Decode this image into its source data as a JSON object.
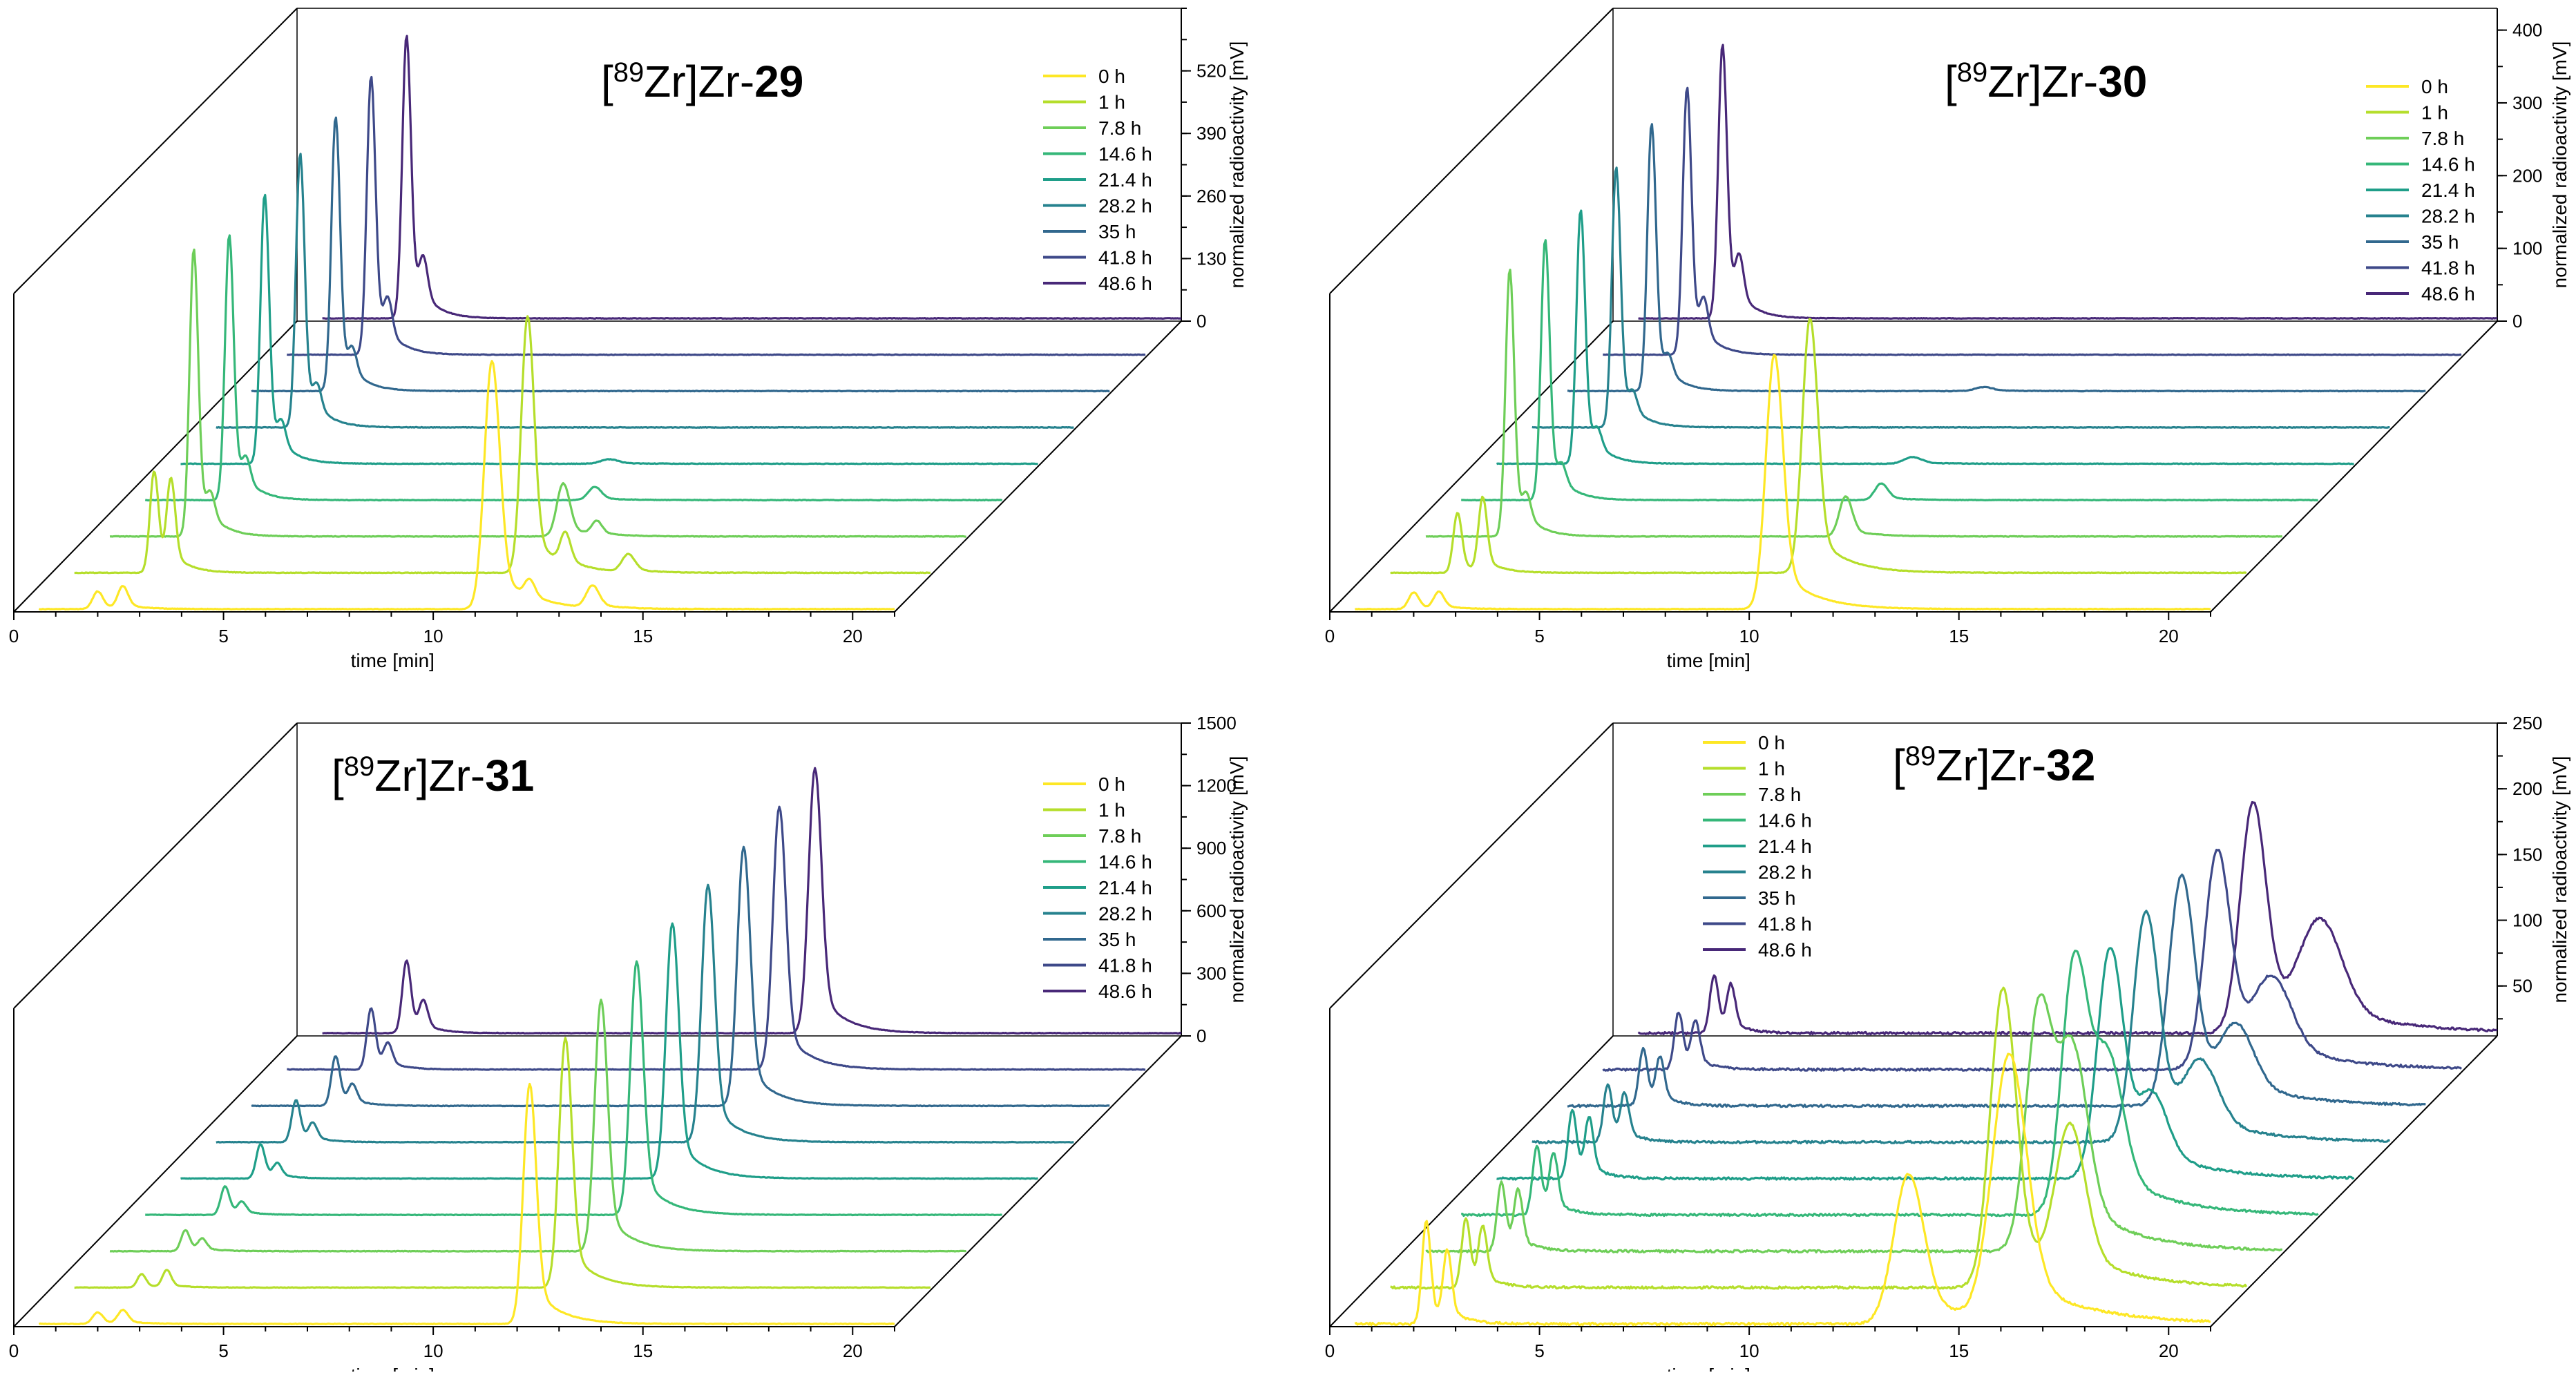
{
  "chart_data": [
    {
      "type": "line",
      "title": {
        "prefix": "[",
        "sup": "89",
        "mid": "Zr]Zr-",
        "bold": "29"
      },
      "xlabel": "time [min]",
      "ylabel": "normalized radioactivity [mV]",
      "xlim": [
        0,
        21
      ],
      "ylim": [
        0,
        650
      ],
      "xticks": [
        "0",
        "5",
        "10",
        "15",
        "20"
      ],
      "yticks": [
        "0",
        "130",
        "260",
        "390",
        "520"
      ],
      "legend": [
        "0 h",
        "1 h",
        "7.8 h",
        "14.6 h",
        "21.4 h",
        "28.2 h",
        "35 h",
        "41.8 h",
        "48.6 h"
      ],
      "legend_position": "top-right",
      "colors": [
        "#fde725",
        "#b5de2b",
        "#6ece58",
        "#35b779",
        "#1f9e89",
        "#26828e",
        "#31688e",
        "#3e4989",
        "#482878"
      ],
      "series": [
        {
          "name": "0 h",
          "peaks": [
            [
              2.0,
              40,
              0.12
            ],
            [
              2.6,
              50,
              0.12
            ],
            [
              11.4,
              560,
              0.18
            ],
            [
              12.3,
              40,
              0.12
            ],
            [
              13.8,
              50,
              0.15
            ]
          ]
        },
        {
          "name": "1 h",
          "peaks": [
            [
              2.5,
              230,
              0.1
            ],
            [
              2.9,
              200,
              0.1
            ],
            [
              11.4,
              580,
              0.15
            ],
            [
              12.3,
              70,
              0.12
            ],
            [
              13.8,
              40,
              0.15
            ]
          ]
        },
        {
          "name": "7.8 h",
          "peaks": [
            [
              2.6,
              650,
              0.1
            ],
            [
              3.0,
              60,
              0.1
            ],
            [
              11.4,
              120,
              0.15
            ],
            [
              12.2,
              30,
              0.12
            ]
          ]
        },
        {
          "name": "14.6 h",
          "peaks": [
            [
              2.6,
              600,
              0.1
            ],
            [
              3.0,
              60,
              0.1
            ],
            [
              11.3,
              30,
              0.15
            ]
          ]
        },
        {
          "name": "21.4 h",
          "peaks": [
            [
              2.6,
              610,
              0.1
            ],
            [
              3.0,
              60,
              0.1
            ],
            [
              10.8,
              10,
              0.2
            ]
          ]
        },
        {
          "name": "28.2 h",
          "peaks": [
            [
              2.6,
              620,
              0.1
            ],
            [
              3.0,
              60,
              0.1
            ]
          ]
        },
        {
          "name": "35 h",
          "peaks": [
            [
              2.6,
              620,
              0.1
            ],
            [
              3.0,
              60,
              0.1
            ]
          ]
        },
        {
          "name": "41.8 h",
          "peaks": [
            [
              2.6,
              630,
              0.1
            ],
            [
              3.0,
              90,
              0.1
            ]
          ]
        },
        {
          "name": "48.6 h",
          "peaks": [
            [
              2.6,
              640,
              0.1
            ],
            [
              3.0,
              100,
              0.1
            ]
          ]
        }
      ]
    },
    {
      "type": "line",
      "title": {
        "prefix": "[",
        "sup": "89",
        "mid": "Zr]Zr-",
        "bold": "30"
      },
      "xlabel": "time [min]",
      "ylabel": "normalized radioactivity [mV]",
      "xlim": [
        0,
        21
      ],
      "ylim": [
        0,
        430
      ],
      "xticks": [
        "0",
        "5",
        "10",
        "15",
        "20"
      ],
      "yticks": [
        "0",
        "100",
        "200",
        "300",
        "400"
      ],
      "legend": [
        "0 h",
        "1 h",
        "7.8 h",
        "14.6 h",
        "21.4 h",
        "28.2 h",
        "35 h",
        "41.8 h",
        "48.6 h"
      ],
      "legend_position": "top-right",
      "colors": [
        "#fde725",
        "#b5de2b",
        "#6ece58",
        "#35b779",
        "#1f9e89",
        "#26828e",
        "#31688e",
        "#3e4989",
        "#482878"
      ],
      "series": [
        {
          "name": "0 h",
          "peaks": [
            [
              2.0,
              25,
              0.12
            ],
            [
              2.6,
              25,
              0.12
            ],
            [
              10.6,
              380,
              0.2
            ]
          ]
        },
        {
          "name": "1 h",
          "peaks": [
            [
              2.2,
              90,
              0.1
            ],
            [
              2.8,
              110,
              0.1
            ],
            [
              10.6,
              380,
              0.18
            ]
          ]
        },
        {
          "name": "7.8 h",
          "peaks": [
            [
              2.6,
              400,
              0.1
            ],
            [
              3.0,
              40,
              0.1
            ],
            [
              10.6,
              60,
              0.15
            ]
          ]
        },
        {
          "name": "14.6 h",
          "peaks": [
            [
              2.6,
              390,
              0.1
            ],
            [
              3.0,
              30,
              0.1
            ],
            [
              10.6,
              25,
              0.15
            ]
          ]
        },
        {
          "name": "21.4 h",
          "peaks": [
            [
              2.6,
              380,
              0.1
            ],
            [
              3.0,
              30,
              0.1
            ],
            [
              10.5,
              10,
              0.2
            ]
          ]
        },
        {
          "name": "28.2 h",
          "peaks": [
            [
              2.6,
              390,
              0.1
            ],
            [
              3.0,
              30,
              0.1
            ]
          ]
        },
        {
          "name": "35 h",
          "peaks": [
            [
              2.6,
              400,
              0.1
            ],
            [
              3.0,
              30,
              0.1
            ],
            [
              10.5,
              6,
              0.2
            ]
          ]
        },
        {
          "name": "41.8 h",
          "peaks": [
            [
              2.6,
              400,
              0.1
            ],
            [
              3.0,
              60,
              0.1
            ]
          ]
        },
        {
          "name": "48.6 h",
          "peaks": [
            [
              2.6,
              410,
              0.1
            ],
            [
              3.0,
              70,
              0.1
            ]
          ]
        }
      ]
    },
    {
      "type": "line",
      "title": {
        "prefix": "[",
        "sup": "89",
        "mid": "Zr]Zr-",
        "bold": "31"
      },
      "xlabel": "time [min]",
      "ylabel": "normalized radioactivity [mV]",
      "xlim": [
        0,
        21
      ],
      "ylim": [
        0,
        1500
      ],
      "xticks": [
        "0",
        "5",
        "10",
        "15",
        "20"
      ],
      "yticks": [
        "0",
        "300",
        "600",
        "900",
        "1200",
        "1500"
      ],
      "legend": [
        "0 h",
        "1 h",
        "7.8 h",
        "14.6 h",
        "21.4 h",
        "28.2 h",
        "35 h",
        "41.8 h",
        "48.6 h"
      ],
      "legend_position": "top-right",
      "colors": [
        "#fde725",
        "#b5de2b",
        "#6ece58",
        "#35b779",
        "#1f9e89",
        "#26828e",
        "#31688e",
        "#3e4989",
        "#482878"
      ],
      "series": [
        {
          "name": "0 h",
          "peaks": [
            [
              2.0,
              60,
              0.12
            ],
            [
              2.6,
              70,
              0.12
            ],
            [
              12.3,
              1250,
              0.15
            ]
          ]
        },
        {
          "name": "1 h",
          "peaks": [
            [
              2.2,
              70,
              0.1
            ],
            [
              2.8,
              90,
              0.1
            ],
            [
              12.3,
              1300,
              0.15
            ]
          ]
        },
        {
          "name": "7.8 h",
          "peaks": [
            [
              2.4,
              110,
              0.1
            ],
            [
              2.8,
              60,
              0.1
            ],
            [
              12.3,
              1310,
              0.15
            ]
          ]
        },
        {
          "name": "14.6 h",
          "peaks": [
            [
              2.5,
              150,
              0.1
            ],
            [
              2.9,
              60,
              0.1
            ],
            [
              12.3,
              1320,
              0.15
            ]
          ]
        },
        {
          "name": "21.4 h",
          "peaks": [
            [
              2.5,
              180,
              0.1
            ],
            [
              2.9,
              70,
              0.1
            ],
            [
              12.3,
              1330,
              0.15
            ]
          ]
        },
        {
          "name": "28.2 h",
          "peaks": [
            [
              2.5,
              220,
              0.1
            ],
            [
              2.9,
              90,
              0.1
            ],
            [
              12.3,
              1340,
              0.15
            ]
          ]
        },
        {
          "name": "35 h",
          "peaks": [
            [
              2.6,
              260,
              0.1
            ],
            [
              3.0,
              100,
              0.1
            ],
            [
              12.3,
              1350,
              0.15
            ]
          ]
        },
        {
          "name": "41.8 h",
          "peaks": [
            [
              2.6,
              320,
              0.1
            ],
            [
              3.0,
              120,
              0.1
            ],
            [
              12.3,
              1370,
              0.15
            ]
          ]
        },
        {
          "name": "48.6 h",
          "peaks": [
            [
              2.6,
              380,
              0.1
            ],
            [
              3.0,
              150,
              0.1
            ],
            [
              12.3,
              1380,
              0.15
            ]
          ]
        }
      ]
    },
    {
      "type": "line",
      "title": {
        "prefix": "[",
        "sup": "89",
        "mid": "Zr]Zr-",
        "bold": "32"
      },
      "xlabel": "time [min]",
      "ylabel": "normalized radioactivity [mV]",
      "xlim": [
        0,
        21
      ],
      "ylim": [
        0,
        250
      ],
      "xticks": [
        "0",
        "5",
        "10",
        "15",
        "20"
      ],
      "yticks": [
        "50",
        "100",
        "150",
        "200",
        "250"
      ],
      "legend": [
        "0 h",
        "1 h",
        "7.8 h",
        "14.6 h",
        "21.4 h",
        "28.2 h",
        "35 h",
        "41.8 h",
        "48.6 h"
      ],
      "legend_position": "top-left",
      "colors": [
        "#fde725",
        "#b5de2b",
        "#6ece58",
        "#35b779",
        "#1f9e89",
        "#26828e",
        "#31688e",
        "#3e4989",
        "#482878"
      ],
      "series": [
        {
          "name": "0 h",
          "peaks": [
            [
              2.3,
              90,
              0.1
            ],
            [
              2.8,
              60,
              0.1
            ],
            [
              13.8,
              130,
              0.35
            ],
            [
              16.2,
              230,
              0.4
            ]
          ]
        },
        {
          "name": "1 h",
          "peaks": [
            [
              2.4,
              60,
              0.1
            ],
            [
              2.8,
              50,
              0.1
            ],
            [
              15.2,
              260,
              0.3
            ],
            [
              16.8,
              130,
              0.35
            ]
          ]
        },
        {
          "name": "7.8 h",
          "peaks": [
            [
              2.4,
              60,
              0.1
            ],
            [
              2.8,
              50,
              0.1
            ],
            [
              15.2,
              210,
              0.3
            ],
            [
              16.0,
              160,
              0.35
            ]
          ]
        },
        {
          "name": "14.6 h",
          "peaks": [
            [
              2.4,
              60,
              0.1
            ],
            [
              2.8,
              50,
              0.1
            ],
            [
              15.2,
              220,
              0.3
            ],
            [
              16.0,
              120,
              0.35
            ]
          ]
        },
        {
          "name": "21.4 h",
          "peaks": [
            [
              2.4,
              60,
              0.1
            ],
            [
              2.8,
              50,
              0.1
            ],
            [
              15.2,
              200,
              0.3
            ],
            [
              16.2,
              60,
              0.35
            ]
          ]
        },
        {
          "name": "28.2 h",
          "peaks": [
            [
              2.4,
              50,
              0.1
            ],
            [
              2.8,
              40,
              0.1
            ],
            [
              15.2,
              200,
              0.3
            ],
            [
              16.5,
              60,
              0.4
            ]
          ]
        },
        {
          "name": "35 h",
          "peaks": [
            [
              2.4,
              50,
              0.1
            ],
            [
              2.8,
              40,
              0.1
            ],
            [
              15.2,
              200,
              0.3
            ],
            [
              16.5,
              60,
              0.4
            ]
          ]
        },
        {
          "name": "41.8 h",
          "peaks": [
            [
              2.4,
              50,
              0.1
            ],
            [
              2.8,
              40,
              0.1
            ],
            [
              15.2,
              190,
              0.3
            ],
            [
              16.5,
              70,
              0.45
            ]
          ]
        },
        {
          "name": "48.6 h",
          "peaks": [
            [
              2.4,
              50,
              0.1
            ],
            [
              2.8,
              40,
              0.1
            ],
            [
              15.2,
              200,
              0.3
            ],
            [
              16.8,
              90,
              0.5
            ]
          ]
        }
      ]
    }
  ]
}
